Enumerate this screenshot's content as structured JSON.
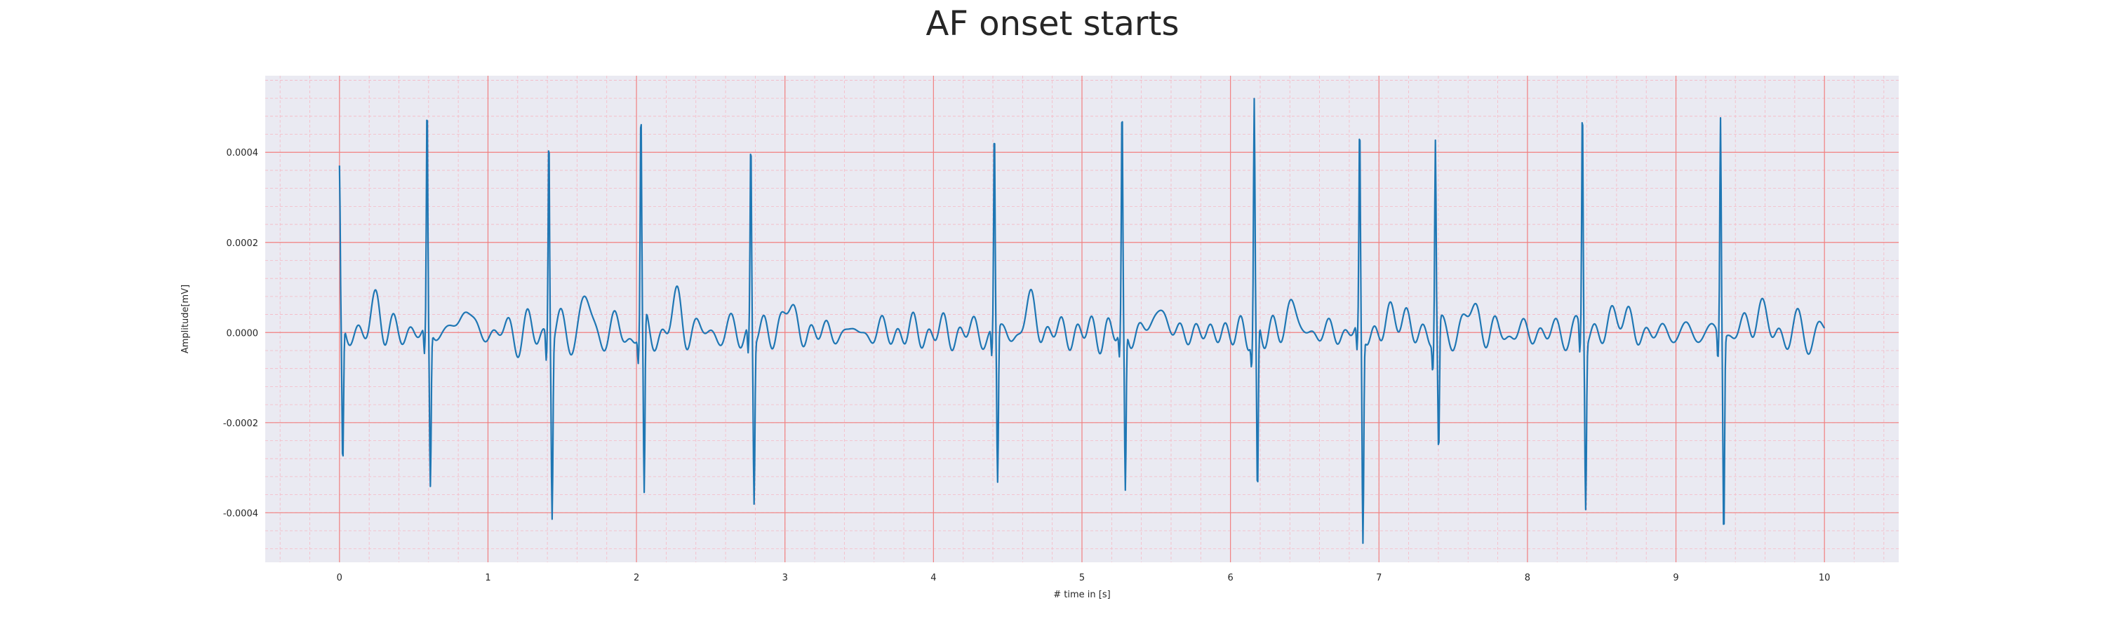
{
  "chart_data": {
    "type": "line",
    "title": "AF onset starts",
    "xlabel": "# time in [s]",
    "ylabel": "Amplitude[mV]",
    "xlim": [
      -0.5,
      10.5
    ],
    "ylim": [
      -0.00051,
      0.00057
    ],
    "xticks": [
      0,
      1,
      2,
      3,
      4,
      5,
      6,
      7,
      8,
      9,
      10
    ],
    "xtick_labels": [
      "0",
      "1",
      "2",
      "3",
      "4",
      "5",
      "6",
      "7",
      "8",
      "9",
      "10"
    ],
    "yticks": [
      -0.0004,
      -0.0002,
      0.0,
      0.0002,
      0.0004
    ],
    "ytick_labels": [
      "-0.0004",
      "-0.0002",
      "0.0000",
      "0.0002",
      "0.0004"
    ],
    "grid": true,
    "minor_grid": true,
    "colors": {
      "plot_background": "#eaeaf2",
      "major_grid": "#f08080",
      "minor_grid": "#f6b8c4",
      "line": "#1f77b4"
    },
    "series": [
      {
        "values_x_step": 0.01,
        "x_start": 0.0,
        "beats": [
          {
            "t": 0.0,
            "peak": 0.00033,
            "trough": -0.00032
          },
          {
            "t": 0.59,
            "peak": 0.0005,
            "trough": -0.000345
          },
          {
            "t": 1.41,
            "peak": 0.000465,
            "trough": -0.000385
          },
          {
            "t": 2.03,
            "peak": 0.00048,
            "trough": -0.000405
          },
          {
            "t": 2.77,
            "peak": 0.000425,
            "trough": -0.000365
          },
          {
            "t": 4.41,
            "peak": 0.00045,
            "trough": -0.000345
          },
          {
            "t": 5.27,
            "peak": 0.000485,
            "trough": -0.000365
          },
          {
            "t": 6.16,
            "peak": 0.0005,
            "trough": -0.00039
          },
          {
            "t": 6.87,
            "peak": 0.000445,
            "trough": -0.000465
          },
          {
            "t": 7.38,
            "peak": 0.000435,
            "trough": -0.00029
          },
          {
            "t": 8.37,
            "peak": 0.00052,
            "trough": -0.000365
          },
          {
            "t": 9.3,
            "peak": 0.000485,
            "trough": -0.000445
          }
        ]
      }
    ]
  }
}
